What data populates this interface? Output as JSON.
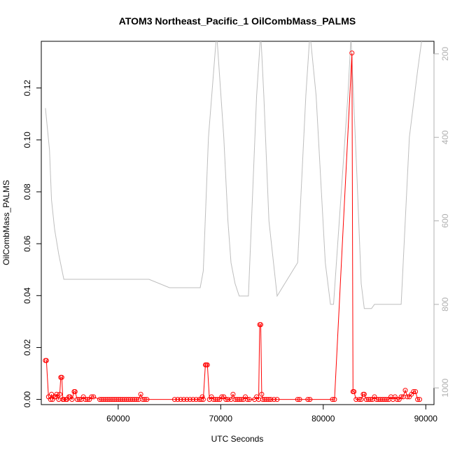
{
  "chart_data": {
    "type": "line",
    "title": "ATOM3 Northeast_Pacific_1 OilCombMass_PALMS",
    "xlabel": "UTC Seconds",
    "ylabel": "OilCombMass_PALMS",
    "xlim": [
      52500,
      90800
    ],
    "ylim": [
      -0.002,
      0.138
    ],
    "x_ticks": [
      60000,
      70000,
      80000,
      90000
    ],
    "x_tick_labels": [
      "60000",
      "70000",
      "80000",
      "90000"
    ],
    "y_ticks": [
      0.0,
      0.02,
      0.04,
      0.06,
      0.08,
      0.1,
      0.12
    ],
    "y_tick_labels": [
      "0.00",
      "0.02",
      "0.04",
      "0.06",
      "0.08",
      "0.10",
      "0.12"
    ],
    "right_axis": {
      "inverted": true,
      "range": [
        170,
        1040
      ],
      "ticks": [
        200,
        400,
        600,
        800,
        1000
      ],
      "tick_labels": [
        "200",
        "400",
        "600",
        "800",
        "1000"
      ],
      "color": "#b0b0b0"
    },
    "colors": {
      "primary": "#ff0000",
      "secondary": "#bebebe"
    },
    "series": [
      {
        "marker": "open-circle",
        "color": "#ff0000",
        "points": [
          [
            52900,
            0.015
          ],
          [
            53000,
            0.015
          ],
          [
            53200,
            0.001
          ],
          [
            53400,
            0.0
          ],
          [
            53500,
            0.002
          ],
          [
            53600,
            0.0
          ],
          [
            53800,
            0.001
          ],
          [
            53900,
            0.001
          ],
          [
            54000,
            0.002
          ],
          [
            54200,
            0.0
          ],
          [
            54300,
            0.002
          ],
          [
            54400,
            0.0085
          ],
          [
            54500,
            0.0085
          ],
          [
            54600,
            0.0
          ],
          [
            54700,
            0.0
          ],
          [
            54900,
            0.0
          ],
          [
            55000,
            0.0
          ],
          [
            55200,
            0.001
          ],
          [
            55300,
            0.001
          ],
          [
            55500,
            0.0
          ],
          [
            55700,
            0.003
          ],
          [
            55800,
            0.003
          ],
          [
            56000,
            0.0
          ],
          [
            56200,
            0.0
          ],
          [
            56400,
            0.0
          ],
          [
            56600,
            0.001
          ],
          [
            56800,
            0.0
          ],
          [
            57000,
            0.0
          ],
          [
            57200,
            0.0
          ],
          [
            57400,
            0.001
          ],
          [
            57600,
            0.001
          ],
          [
            58200,
            0.0
          ],
          [
            58400,
            0.0
          ],
          [
            58600,
            0.0
          ],
          [
            58800,
            0.0
          ],
          [
            59000,
            0.0
          ],
          [
            59200,
            0.0
          ],
          [
            59400,
            0.0
          ],
          [
            59600,
            0.0
          ],
          [
            59800,
            0.0
          ],
          [
            60000,
            0.0
          ],
          [
            60200,
            0.0
          ],
          [
            60400,
            0.0
          ],
          [
            60600,
            0.0
          ],
          [
            60800,
            0.0
          ],
          [
            61000,
            0.0
          ],
          [
            61200,
            0.0
          ],
          [
            61400,
            0.0
          ],
          [
            61600,
            0.0
          ],
          [
            61800,
            0.0
          ],
          [
            62000,
            0.0
          ],
          [
            62200,
            0.002
          ],
          [
            62400,
            0.0
          ],
          [
            62600,
            0.0
          ],
          [
            62800,
            0.0
          ],
          [
            65500,
            0.0
          ],
          [
            65800,
            0.0
          ],
          [
            66100,
            0.0
          ],
          [
            66400,
            0.0
          ],
          [
            66700,
            0.0
          ],
          [
            67000,
            0.0
          ],
          [
            67300,
            0.0
          ],
          [
            67600,
            0.0
          ],
          [
            67900,
            0.0
          ],
          [
            68100,
            0.0
          ],
          [
            68200,
            0.001
          ],
          [
            68300,
            0.0
          ],
          [
            68500,
            0.0133
          ],
          [
            68600,
            0.0133
          ],
          [
            68700,
            0.0133
          ],
          [
            68900,
            0.0
          ],
          [
            69100,
            0.001
          ],
          [
            69300,
            0.0
          ],
          [
            69500,
            0.0
          ],
          [
            69700,
            0.0
          ],
          [
            69900,
            0.0
          ],
          [
            70100,
            0.001
          ],
          [
            70300,
            0.001
          ],
          [
            70500,
            0.0
          ],
          [
            70700,
            0.0
          ],
          [
            71000,
            0.0
          ],
          [
            71200,
            0.002
          ],
          [
            71400,
            0.0
          ],
          [
            71600,
            0.0
          ],
          [
            71800,
            0.0
          ],
          [
            72000,
            0.0
          ],
          [
            72200,
            0.0
          ],
          [
            72400,
            0.001
          ],
          [
            72600,
            0.0
          ],
          [
            72800,
            0.0
          ],
          [
            73300,
            0.0
          ],
          [
            73500,
            0.001
          ],
          [
            73700,
            0.0
          ],
          [
            73800,
            0.0288
          ],
          [
            73900,
            0.0288
          ],
          [
            74000,
            0.002
          ],
          [
            74100,
            0.0
          ],
          [
            74300,
            0.0
          ],
          [
            74500,
            0.0
          ],
          [
            74700,
            0.0
          ],
          [
            74900,
            0.0
          ],
          [
            75200,
            0.0
          ],
          [
            75500,
            0.0
          ],
          [
            77500,
            0.0
          ],
          [
            77700,
            0.0
          ],
          [
            78500,
            0.0
          ],
          [
            78700,
            0.0
          ],
          [
            80900,
            0.0
          ],
          [
            81100,
            0.0
          ],
          [
            82800,
            0.1335
          ],
          [
            82900,
            0.003
          ],
          [
            83000,
            0.003
          ],
          [
            83200,
            0.0
          ],
          [
            83500,
            0.0
          ],
          [
            83700,
            0.0
          ],
          [
            83900,
            0.002
          ],
          [
            84000,
            0.002
          ],
          [
            84200,
            0.0
          ],
          [
            84400,
            0.0
          ],
          [
            84600,
            0.0
          ],
          [
            84800,
            0.0
          ],
          [
            85000,
            0.001
          ],
          [
            85200,
            0.0
          ],
          [
            85400,
            0.0
          ],
          [
            85600,
            0.0
          ],
          [
            85800,
            0.0
          ],
          [
            86000,
            0.0
          ],
          [
            86200,
            0.0
          ],
          [
            86400,
            0.0
          ],
          [
            86600,
            0.001
          ],
          [
            86800,
            0.0
          ],
          [
            87000,
            0.001
          ],
          [
            87200,
            0.0
          ],
          [
            87400,
            0.0
          ],
          [
            87600,
            0.001
          ],
          [
            87800,
            0.001
          ],
          [
            88000,
            0.0035
          ],
          [
            88200,
            0.001
          ],
          [
            88400,
            0.001
          ],
          [
            88600,
            0.002
          ],
          [
            88800,
            0.003
          ],
          [
            89000,
            0.003
          ],
          [
            89200,
            0.0
          ],
          [
            89400,
            0.0
          ]
        ]
      },
      {
        "axis": "right",
        "color": "#bebebe",
        "points": [
          [
            52900,
            330
          ],
          [
            53100,
            380
          ],
          [
            53300,
            430
          ],
          [
            53500,
            550
          ],
          [
            53800,
            620
          ],
          [
            54200,
            680
          ],
          [
            54700,
            740
          ],
          [
            58000,
            740
          ],
          [
            61000,
            740
          ],
          [
            63000,
            740
          ],
          [
            65000,
            760
          ],
          [
            68000,
            760
          ],
          [
            68300,
            720
          ],
          [
            68800,
            400
          ],
          [
            69600,
            150
          ],
          [
            70300,
            400
          ],
          [
            70700,
            600
          ],
          [
            71000,
            700
          ],
          [
            71400,
            750
          ],
          [
            71800,
            780
          ],
          [
            72700,
            780
          ],
          [
            73000,
            600
          ],
          [
            73500,
            300
          ],
          [
            73900,
            150
          ],
          [
            74200,
            300
          ],
          [
            74700,
            600
          ],
          [
            75500,
            780
          ],
          [
            77500,
            700
          ],
          [
            78300,
            300
          ],
          [
            78700,
            150
          ],
          [
            79300,
            300
          ],
          [
            80200,
            700
          ],
          [
            80700,
            800
          ],
          [
            81000,
            800
          ],
          [
            82400,
            300
          ],
          [
            82700,
            160
          ],
          [
            83300,
            500
          ],
          [
            83700,
            750
          ],
          [
            84000,
            810
          ],
          [
            84700,
            810
          ],
          [
            85000,
            800
          ],
          [
            87000,
            800
          ],
          [
            87600,
            800
          ],
          [
            88400,
            400
          ],
          [
            89200,
            240
          ],
          [
            89700,
            150
          ]
        ]
      }
    ]
  }
}
